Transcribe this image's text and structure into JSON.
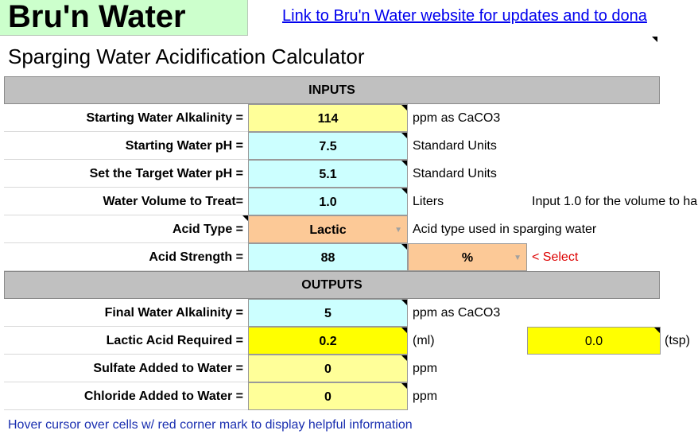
{
  "header": {
    "title": "Bru'n Water",
    "link_text": "Link to Bru'n Water website for updates and to dona",
    "subtitle": "Sparging Water Acidification Calculator"
  },
  "sections": {
    "inputs": "INPUTS",
    "outputs": "OUTPUTS"
  },
  "inputs": {
    "alkalinity": {
      "label": "Starting Water Alkalinity =",
      "value": "114",
      "unit": "ppm as CaCO3"
    },
    "ph": {
      "label": "Starting Water pH =",
      "value": "7.5",
      "unit": "Standard Units"
    },
    "target_ph": {
      "label": "Set the Target Water pH =",
      "value": "5.1",
      "unit": "Standard Units"
    },
    "volume": {
      "label": "Water Volume to Treat=",
      "value": "1.0",
      "unit": "Liters",
      "note": "Input 1.0 for the volume to ha"
    },
    "acid_type": {
      "label": "Acid Type =",
      "value": "Lactic",
      "unit": "Acid type used in sparging water"
    },
    "acid_strength": {
      "label": "Acid Strength =",
      "value": "88",
      "unit_select": "%",
      "hint": "< Select"
    }
  },
  "outputs": {
    "final_alkalinity": {
      "label": "Final Water Alkalinity =",
      "value": "5",
      "unit": "ppm as CaCO3"
    },
    "acid_required": {
      "label": "Lactic Acid Required =",
      "value": "0.2",
      "unit": "(ml)",
      "value2": "0.0",
      "unit2": "(tsp)"
    },
    "sulfate": {
      "label": "Sulfate Added to Water =",
      "value": "0",
      "unit": "ppm"
    },
    "chloride": {
      "label": "Chloride Added to Water =",
      "value": "0",
      "unit": "ppm"
    }
  },
  "footnote": "Hover cursor over cells w/ red corner mark to display helpful information",
  "colors": {
    "title_bg": "#ccffcc",
    "input_yellow": "#ffff99",
    "input_cyan": "#ccffff",
    "select_orange": "#fcc997",
    "output_yellow": "#ffff00",
    "header_gray": "#c0c0c0",
    "link_blue": "#0000ee",
    "hint_red": "#dd0000"
  }
}
